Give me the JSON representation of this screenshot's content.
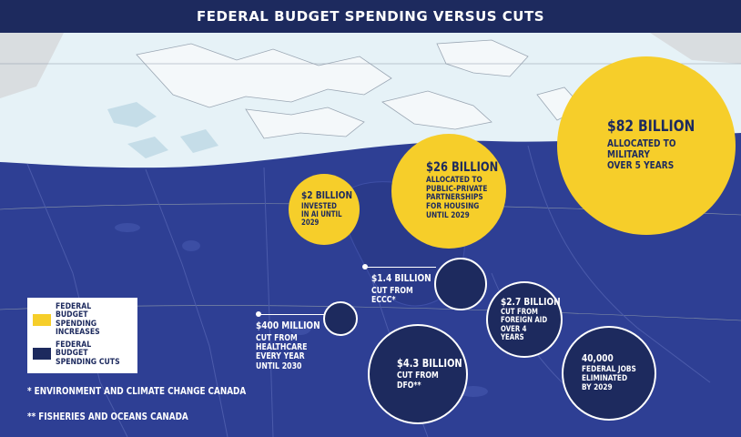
{
  "header": {
    "title": "FEDERAL BUDGET SPENDING VERSUS CUTS"
  },
  "colors": {
    "increase": "#f6ce2a",
    "cut": "#1d2a5e",
    "map_land": "#2e3f94",
    "map_north": "#e6f2f7",
    "ice": "#c5dde8"
  },
  "chart_data": {
    "type": "bubble",
    "title": "FEDERAL BUDGET SPENDING VERSUS CUTS",
    "items": [
      {
        "category": "increase",
        "amount": "$82 BILLION",
        "description": "ALLOCATED TO\nMILITARY\nOVER 5 YEARS"
      },
      {
        "category": "increase",
        "amount": "$26 BILLION",
        "description": "ALLOCATED TO\nPUBLIC-PRIVATE\nPARTNERSHIPS\nFOR HOUSING\nUNTIL 2029"
      },
      {
        "category": "increase",
        "amount": "$2 BILLION",
        "description": "INVESTED\nIN AI UNTIL\n2029"
      },
      {
        "category": "cut",
        "amount": "$1.4 BILLION",
        "description": "CUT FROM\nECCC*"
      },
      {
        "category": "cut",
        "amount": "$400 MILLION",
        "description": "CUT FROM\nHEALTHCARE\nEVERY YEAR\nUNTIL 2030"
      },
      {
        "category": "cut",
        "amount": "$2.7 BILLION",
        "description": "CUT FROM\nFOREIGN AID\nOVER 4 YEARS"
      },
      {
        "category": "cut",
        "amount": "$4.3 BILLION",
        "description": "CUT FROM\nDFO**"
      },
      {
        "category": "cut",
        "amount": "40,000",
        "description": "FEDERAL JOBS\nELIMINATED\nBY 2029"
      }
    ],
    "legend": [
      {
        "label": "FEDERAL BUDGET\nSPENDING\nINCREASES",
        "category": "increase"
      },
      {
        "label": "FEDERAL BUDGET\nSPENDING CUTS",
        "category": "cut"
      }
    ],
    "footnotes": [
      "* ENVIRONMENT AND CLIMATE CHANGE CANADA",
      "** FISHERIES AND OCEANS CANADA"
    ]
  }
}
